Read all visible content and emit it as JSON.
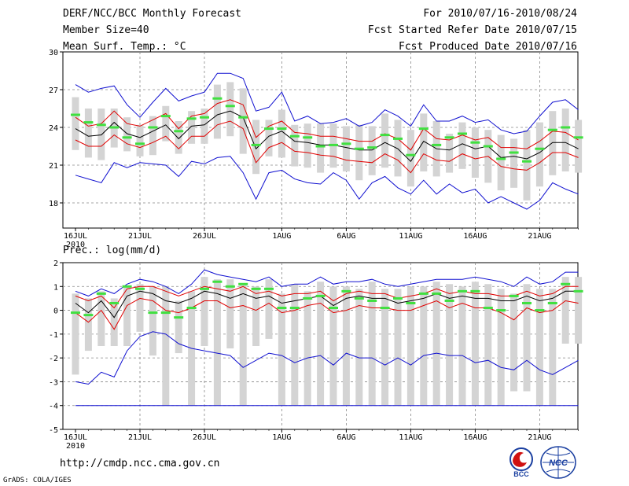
{
  "header": {
    "title": "DERF/NCC/BCC Monthly Forecast",
    "member_size": "Member Size=40",
    "variable": "Mean Surf. Temp.: °C",
    "period": "For 2010/07/16-2010/08/24",
    "started": "Fcst Started Refer Date 2010/07/15",
    "produced": "Fcst Produced Date 2010/07/16"
  },
  "colors": {
    "box": "#d4d4d4",
    "mean": "#000000",
    "spread": "#e00000",
    "extreme": "#1010d0",
    "observed": "#40e040",
    "grid": "#888888"
  },
  "chart_data": [
    {
      "type": "box-plume",
      "title": "Mean Surf. Temp.: °C",
      "ylim": [
        16,
        30
      ],
      "yticks": [
        18,
        21,
        24,
        27,
        30
      ],
      "xticks": [
        "16JUL",
        "21JUL",
        "26JUL",
        "1AUG",
        "6AUG",
        "11AUG",
        "16AUG",
        "21AUG"
      ],
      "xtick_days": [
        0,
        5,
        10,
        16,
        21,
        26,
        31,
        36
      ],
      "year_label": "2010",
      "series": [
        {
          "name": "ensemble mean",
          "values": [
            23.9,
            23.3,
            23.4,
            24.4,
            23.5,
            23.2,
            23.7,
            24.2,
            23.1,
            24.1,
            24.2,
            25.0,
            25.3,
            24.8,
            22.3,
            23.3,
            23.7,
            22.9,
            22.8,
            22.6,
            22.6,
            22.4,
            22.2,
            22.2,
            22.8,
            22.3,
            21.3,
            22.9,
            22.3,
            22.2,
            22.7,
            22.3,
            22.5,
            21.6,
            21.7,
            21.5,
            22.0,
            22.8,
            22.8,
            22.3
          ]
        },
        {
          "name": "mean + 1 std",
          "values": [
            24.8,
            24.1,
            24.3,
            25.3,
            24.3,
            24.1,
            24.6,
            25.1,
            23.9,
            24.9,
            25.1,
            25.9,
            26.2,
            25.8,
            23.2,
            24.1,
            24.5,
            23.6,
            23.5,
            23.3,
            23.3,
            23.1,
            22.9,
            22.9,
            23.5,
            23.1,
            22.2,
            23.9,
            23.1,
            23.0,
            23.4,
            23.0,
            23.2,
            22.4,
            22.4,
            22.3,
            22.9,
            23.7,
            23.6,
            23.0
          ]
        },
        {
          "name": "mean - 1 std",
          "values": [
            23.0,
            22.5,
            22.5,
            23.4,
            22.7,
            22.4,
            22.8,
            23.3,
            22.3,
            23.3,
            23.3,
            24.2,
            24.5,
            23.9,
            21.2,
            22.4,
            22.8,
            22.1,
            22.0,
            21.8,
            21.7,
            21.4,
            21.3,
            21.2,
            21.9,
            21.4,
            20.4,
            21.9,
            21.4,
            21.3,
            21.9,
            21.5,
            21.7,
            20.9,
            20.7,
            20.6,
            21.2,
            22.0,
            22.0,
            21.6
          ]
        },
        {
          "name": "max",
          "values": [
            27.4,
            26.8,
            27.1,
            27.3,
            25.8,
            24.8,
            26.0,
            27.1,
            26.1,
            26.5,
            26.8,
            28.3,
            28.3,
            27.9,
            25.3,
            25.6,
            26.8,
            24.5,
            24.9,
            24.3,
            24.4,
            24.7,
            24.1,
            24.4,
            25.4,
            24.9,
            24.1,
            25.8,
            24.5,
            24.5,
            24.9,
            24.4,
            24.6,
            23.8,
            23.5,
            23.7,
            24.9,
            26.0,
            26.2,
            25.4
          ]
        },
        {
          "name": "min",
          "values": [
            20.2,
            19.9,
            19.6,
            21.2,
            20.8,
            21.2,
            21.1,
            21.0,
            20.1,
            21.3,
            21.1,
            21.6,
            21.7,
            20.4,
            18.3,
            20.4,
            20.6,
            19.9,
            19.6,
            19.5,
            20.4,
            19.8,
            18.3,
            19.6,
            20.1,
            19.2,
            18.7,
            19.8,
            18.7,
            19.5,
            18.8,
            19.1,
            18.0,
            18.5,
            18.0,
            17.5,
            18.2,
            19.6,
            19.1,
            18.7
          ]
        },
        {
          "name": "box top",
          "values": [
            26.4,
            25.5,
            25.5,
            25.5,
            24.8,
            24.2,
            24.9,
            25.7,
            24.5,
            25.3,
            25.5,
            27.4,
            27.6,
            27.1,
            24.6,
            24.6,
            25.4,
            24.2,
            24.3,
            24.3,
            24.3,
            24.1,
            24.2,
            24.1,
            25.1,
            24.6,
            23.8,
            25.1,
            24.5,
            23.5,
            24.4,
            24.0,
            23.8,
            23.4,
            23.1,
            23.8,
            24.4,
            25.3,
            25.5,
            24.6
          ]
        },
        {
          "name": "box bottom",
          "values": [
            22.2,
            21.6,
            21.4,
            22.4,
            22.1,
            21.7,
            21.8,
            22.9,
            21.9,
            22.7,
            22.7,
            23.1,
            23.3,
            21.9,
            20.3,
            21.7,
            21.6,
            20.9,
            20.8,
            20.4,
            20.8,
            20.5,
            19.8,
            20.2,
            20.8,
            20.1,
            19.3,
            20.5,
            20.1,
            20.4,
            20.7,
            20.0,
            19.6,
            19.0,
            19.2,
            18.2,
            19.3,
            20.2,
            20.5,
            20.4
          ]
        },
        {
          "name": "observed",
          "values": [
            25.0,
            24.4,
            24.2,
            24.0,
            23.2,
            22.7,
            24.0,
            24.9,
            23.7,
            24.7,
            24.8,
            26.3,
            25.7,
            24.8,
            22.6,
            23.9,
            23.9,
            23.3,
            23.2,
            22.5,
            22.6,
            22.7,
            22.3,
            22.4,
            23.4,
            23.1,
            21.8,
            23.9,
            22.6,
            23.2,
            23.5,
            22.8,
            22.5,
            21.5,
            22.0,
            21.3,
            22.3,
            23.8,
            24.0,
            23.2
          ]
        }
      ]
    },
    {
      "type": "box-plume",
      "title": "Prec.: log(mm/d)",
      "ylim": [
        -5,
        2
      ],
      "yticks": [
        -5,
        -4,
        -3,
        -2,
        -1,
        0,
        1,
        2
      ],
      "xticks": [
        "16JUL",
        "21JUL",
        "26JUL",
        "1AUG",
        "6AUG",
        "11AUG",
        "16AUG",
        "21AUG"
      ],
      "xtick_days": [
        0,
        5,
        10,
        16,
        21,
        26,
        31,
        36
      ],
      "year_label": "2010",
      "series": [
        {
          "name": "ensemble mean",
          "values": [
            0.3,
            -0.1,
            0.4,
            -0.3,
            0.6,
            0.8,
            0.7,
            0.4,
            0.3,
            0.5,
            0.8,
            0.7,
            0.5,
            0.7,
            0.5,
            0.6,
            0.3,
            0.4,
            0.5,
            0.6,
            0.2,
            0.5,
            0.6,
            0.5,
            0.5,
            0.3,
            0.4,
            0.5,
            0.7,
            0.5,
            0.6,
            0.5,
            0.5,
            0.4,
            0.4,
            0.6,
            0.4,
            0.5,
            0.8,
            0.8
          ]
        },
        {
          "name": "mean + 1 std",
          "values": [
            0.6,
            0.4,
            0.6,
            0.1,
            0.9,
            1.0,
            1.0,
            0.8,
            0.6,
            0.8,
            1.0,
            0.9,
            0.8,
            1.0,
            0.7,
            0.8,
            0.6,
            0.7,
            0.7,
            0.8,
            0.4,
            0.7,
            0.8,
            0.7,
            0.7,
            0.5,
            0.6,
            0.7,
            0.9,
            0.7,
            0.8,
            0.7,
            0.7,
            0.6,
            0.6,
            0.8,
            0.6,
            0.7,
            1.0,
            1.0
          ]
        },
        {
          "name": "mean - 1 std",
          "values": [
            -0.1,
            -0.5,
            0.0,
            -0.8,
            0.2,
            0.5,
            0.4,
            0.0,
            -0.1,
            0.1,
            0.4,
            0.4,
            0.1,
            0.2,
            0.0,
            0.3,
            -0.1,
            0.0,
            0.2,
            0.3,
            -0.1,
            0.0,
            0.2,
            0.1,
            0.1,
            0.0,
            0.0,
            0.2,
            0.4,
            0.1,
            0.3,
            0.1,
            0.1,
            -0.1,
            -0.4,
            0.1,
            -0.1,
            0.0,
            0.4,
            0.3
          ]
        },
        {
          "name": "max",
          "values": [
            0.8,
            0.6,
            0.9,
            0.7,
            1.1,
            1.3,
            1.2,
            1.0,
            0.7,
            1.1,
            1.7,
            1.5,
            1.4,
            1.3,
            1.2,
            1.4,
            1.0,
            1.1,
            1.1,
            1.4,
            1.1,
            1.2,
            1.2,
            1.3,
            1.1,
            1.0,
            1.1,
            1.2,
            1.3,
            1.3,
            1.3,
            1.4,
            1.3,
            1.2,
            1.0,
            1.4,
            1.1,
            1.2,
            1.6,
            1.6
          ]
        },
        {
          "name": "min",
          "values": [
            -3.0,
            -3.1,
            -2.6,
            -2.8,
            -1.7,
            -1.1,
            -0.9,
            -1.0,
            -1.4,
            -1.6,
            -1.7,
            -1.8,
            -1.9,
            -2.4,
            -2.1,
            -1.8,
            -1.9,
            -2.2,
            -2.0,
            -1.9,
            -2.3,
            -1.8,
            -2.0,
            -2.0,
            -2.3,
            -2.0,
            -2.3,
            -1.9,
            -1.8,
            -1.9,
            -1.9,
            -2.2,
            -2.1,
            -2.4,
            -2.5,
            -2.1,
            -2.5,
            -2.7,
            -2.4,
            -2.1
          ]
        },
        {
          "name": "lower limit",
          "values": [
            -4.0,
            -4.0,
            -4.0,
            -4.0,
            -4.0,
            -4.0,
            -4.0,
            -4.0,
            -4.0,
            -4.0,
            -4.0,
            -4.0,
            -4.0,
            -4.0,
            -4.0,
            -4.0,
            -4.0,
            -4.0,
            -4.0,
            -4.0,
            -4.0,
            -4.0,
            -4.0,
            -4.0,
            -4.0,
            -4.0,
            -4.0,
            -4.0,
            -4.0,
            -4.0,
            -4.0,
            -4.0,
            -4.0,
            -4.0,
            -4.0,
            -4.0,
            -4.0,
            -4.0,
            -4.0,
            -4.0
          ]
        },
        {
          "name": "box top",
          "values": [
            0.7,
            0.5,
            0.8,
            0.5,
            1.0,
            1.1,
            1.0,
            1.0,
            0.4,
            0.8,
            1.4,
            1.3,
            1.3,
            1.1,
            1.0,
            1.3,
            0.7,
            1.1,
            0.8,
            1.2,
            1.0,
            1.0,
            0.9,
            1.2,
            0.9,
            0.9,
            1.0,
            1.0,
            1.2,
            1.1,
            1.0,
            1.2,
            1.1,
            0.9,
            0.7,
            1.1,
            0.9,
            0.9,
            1.4,
            1.4
          ]
        },
        {
          "name": "box bottom",
          "values": [
            -2.7,
            -1.7,
            -1.5,
            -1.5,
            -1.5,
            -0.9,
            -1.9,
            -4.0,
            -1.8,
            -4.0,
            -1.5,
            -4.0,
            -1.6,
            -4.0,
            -1.5,
            -1.2,
            -4.0,
            -4.0,
            -4.0,
            -4.0,
            -4.0,
            -4.0,
            -4.0,
            -4.0,
            -4.0,
            -4.0,
            -4.0,
            -4.0,
            -4.0,
            -4.0,
            -4.0,
            -4.0,
            -4.0,
            -4.0,
            -3.4,
            -3.4,
            -4.0,
            -4.0,
            -1.4,
            -1.4
          ]
        },
        {
          "name": "observed",
          "values": [
            -0.1,
            -0.2,
            0.7,
            0.3,
            1.0,
            0.9,
            -0.1,
            -0.1,
            -0.3,
            0.1,
            0.9,
            1.2,
            1.0,
            1.1,
            0.9,
            0.9,
            0.1,
            0.1,
            0.5,
            0.6,
            0.1,
            0.8,
            0.5,
            0.4,
            0.1,
            0.5,
            0.3,
            0.7,
            0.7,
            0.4,
            0.8,
            0.8,
            0.1,
            0.0,
            0.6,
            0.3,
            0.0,
            0.3,
            1.1,
            0.8
          ]
        }
      ]
    }
  ],
  "footer": {
    "url": "http://cmdp.ncc.cma.gov.cn",
    "grads": "GrADS: COLA/IGES",
    "logo_bcc": "BCC",
    "logo_ncc": "NCC"
  }
}
